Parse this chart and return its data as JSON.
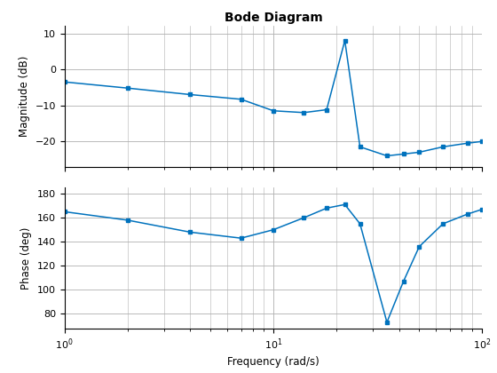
{
  "title": "Bode Diagram",
  "xlabel": "Frequency (rad/s)",
  "ylabel_mag": "Magnitude (dB)",
  "ylabel_phase": "Phase (deg)",
  "line_color": "#0072bd",
  "freq": [
    1.0,
    2.0,
    4.0,
    7.0,
    10.0,
    14.0,
    18.0,
    22.0,
    26.0,
    35.0,
    42.0,
    50.0,
    65.0,
    85.0,
    100.0
  ],
  "magnitude": [
    -3.5,
    -5.2,
    -7.0,
    -8.3,
    -11.5,
    -12.0,
    -11.2,
    8.0,
    -21.5,
    -24.0,
    -23.5,
    -23.0,
    -21.5,
    -20.5,
    -20.0
  ],
  "phase": [
    165.0,
    158.0,
    148.0,
    143.0,
    150.0,
    160.0,
    168.0,
    171.0,
    155.0,
    73.0,
    107.0,
    136.0,
    155.0,
    163.0,
    167.0
  ],
  "mag_ylim": [
    -27,
    12
  ],
  "mag_yticks": [
    -20,
    -10,
    0,
    10
  ],
  "phase_ylim": [
    68,
    185
  ],
  "phase_yticks": [
    80,
    100,
    120,
    140,
    160,
    180
  ],
  "xlim": [
    1.0,
    100.0
  ],
  "background_color": "#ffffff",
  "grid_color": "#b0b0b0"
}
